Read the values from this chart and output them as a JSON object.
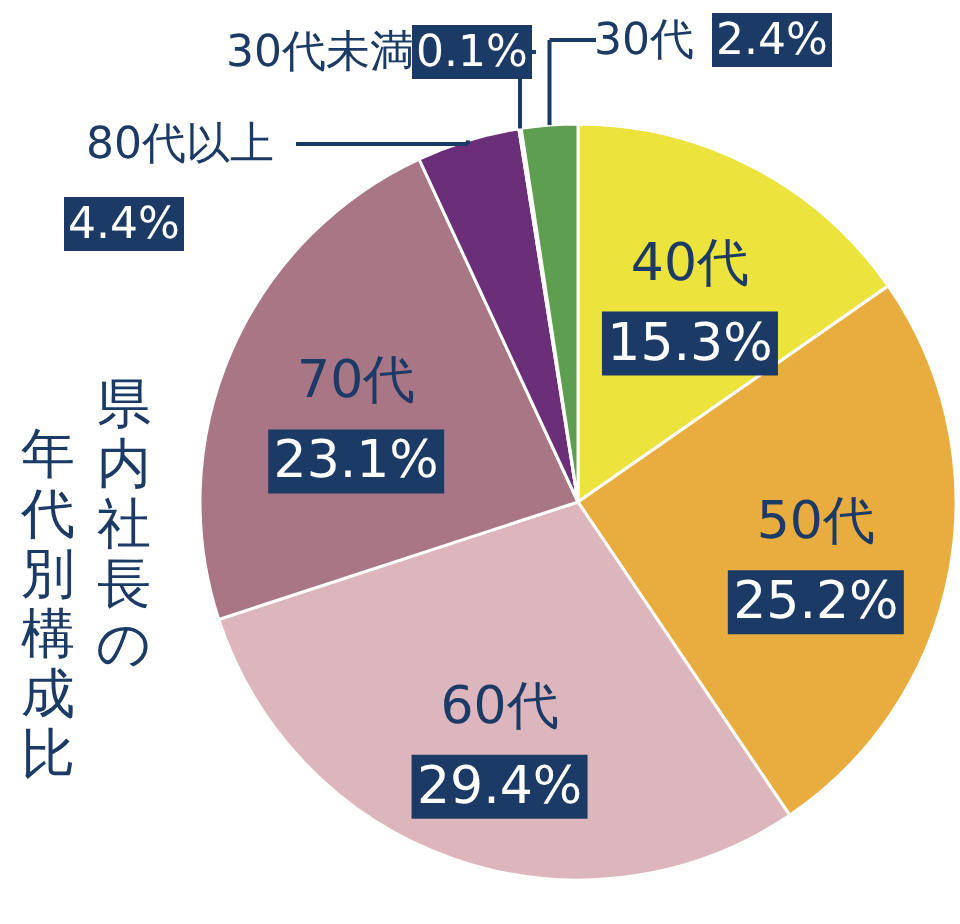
{
  "chart_data": {
    "type": "pie",
    "title": "県内社長の年代別構成比",
    "categories": [
      "40代",
      "50代",
      "60代",
      "70代",
      "80代以上",
      "30代未満",
      "30代"
    ],
    "values": [
      15.3,
      25.2,
      29.4,
      23.1,
      4.4,
      0.1,
      2.4
    ],
    "value_labels": [
      "15.3%",
      "25.2%",
      "29.4%",
      "23.1%",
      "4.4%",
      "0.1%",
      "2.4%"
    ],
    "colors": [
      "#ede33d",
      "#e9ad3f",
      "#dcb6bc",
      "#a87684",
      "#6b2e78",
      "#9a9a9a",
      "#5e9e50"
    ]
  }
}
